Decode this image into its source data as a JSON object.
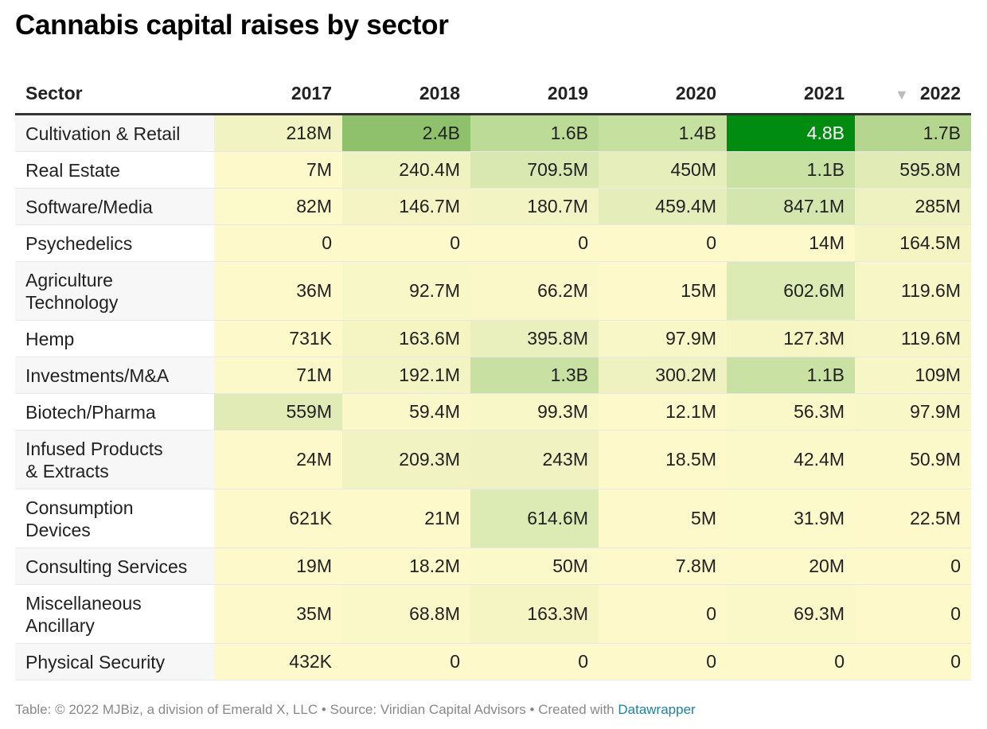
{
  "title": "Cannabis capital raises by sector",
  "footer": {
    "text": "Table: © 2022 MJBiz, a division of Emerald X, LLC • Source: Viridian Capital Advisors • Created with ",
    "link": "Datawrapper"
  },
  "sort_icon": "sort-down-triangle-icon",
  "chart_data": {
    "type": "table",
    "columns": [
      "Sector",
      "2017",
      "2018",
      "2019",
      "2020",
      "2021",
      "2022"
    ],
    "sorted_by": "2022",
    "sort_order": "descending",
    "rows": [
      {
        "sector": "Cultivation & Retail",
        "values": [
          "218M",
          "2.4B",
          "1.6B",
          "1.4B",
          "4.8B",
          "1.7B"
        ],
        "colors": [
          "#f2f3c2",
          "#8fc16c",
          "#bcdb96",
          "#c6e09f",
          "#008c10",
          "#b4d68e"
        ],
        "text_colors": [
          "#222222",
          "#222222",
          "#222222",
          "#222222",
          "#ffffff",
          "#222222"
        ]
      },
      {
        "sector": "Real Estate",
        "values": [
          "7M",
          "240.4M",
          "709.5M",
          "450M",
          "1.1B",
          "595.8M"
        ],
        "colors": [
          "#fdf9cb",
          "#eff3c1",
          "#d8e8b0",
          "#e6eebb",
          "#c9e1a2",
          "#e0ebb6"
        ]
      },
      {
        "sector": "Software/Media",
        "values": [
          "82M",
          "146.7M",
          "180.7M",
          "459.4M",
          "847.1M",
          "285M"
        ],
        "colors": [
          "#fcf9ca",
          "#f4f4c4",
          "#f3f4c3",
          "#e5edba",
          "#d3e6ad",
          "#eef2c0"
        ]
      },
      {
        "sector": "Psychedelics",
        "values": [
          "0",
          "0",
          "0",
          "0",
          "14M",
          "164.5M"
        ],
        "colors": [
          "#fdf9cb",
          "#fdf9cb",
          "#fdf9cb",
          "#fdf9cb",
          "#fdf9cb",
          "#f5f5c4"
        ]
      },
      {
        "sector": "Agriculture Technology",
        "values": [
          "36M",
          "92.7M",
          "66.2M",
          "15M",
          "602.6M",
          "119.6M"
        ],
        "colors": [
          "#fdf9cb",
          "#f8f7c7",
          "#faf8c9",
          "#fdf9cb",
          "#dceab3",
          "#f7f6c6"
        ]
      },
      {
        "sector": "Hemp",
        "values": [
          "731K",
          "163.6M",
          "395.8M",
          "97.9M",
          "127.3M",
          "119.6M"
        ],
        "colors": [
          "#fdf9cb",
          "#f5f5c4",
          "#e9efbd",
          "#f8f7c7",
          "#f6f6c5",
          "#f7f6c6"
        ]
      },
      {
        "sector": "Investments/M&A",
        "values": [
          "71M",
          "192.1M",
          "1.3B",
          "300.2M",
          "1.1B",
          "109M"
        ],
        "colors": [
          "#fbf8c9",
          "#f3f4c3",
          "#c8e0a2",
          "#eef2c0",
          "#c9e1a2",
          "#f7f6c6"
        ]
      },
      {
        "sector": "Biotech/Pharma",
        "values": [
          "559M",
          "59.4M",
          "99.3M",
          "12.1M",
          "56.3M",
          "97.9M"
        ],
        "colors": [
          "#e1ebb6",
          "#faf8c9",
          "#f8f7c7",
          "#fdf9cb",
          "#faf8c9",
          "#f8f7c7"
        ]
      },
      {
        "sector": "Infused Products & Extracts",
        "values": [
          "24M",
          "209.3M",
          "243M",
          "18.5M",
          "42.4M",
          "50.9M"
        ],
        "colors": [
          "#fdf9cb",
          "#f2f3c2",
          "#f0f2c1",
          "#fdf9cb",
          "#fbf8ca",
          "#fbf8ca"
        ]
      },
      {
        "sector": "Consumption Devices",
        "values": [
          "621K",
          "21M",
          "614.6M",
          "5M",
          "31.9M",
          "22.5M"
        ],
        "colors": [
          "#fdf9cb",
          "#fdf9cb",
          "#dceab3",
          "#fdf9cb",
          "#fcf9ca",
          "#fdf9cb"
        ]
      },
      {
        "sector": "Consulting Services",
        "values": [
          "19M",
          "18.2M",
          "50M",
          "7.8M",
          "20M",
          "0"
        ],
        "colors": [
          "#fdf9cb",
          "#fdf9cb",
          "#fbf8ca",
          "#fdf9cb",
          "#fdf9cb",
          "#fdf9cb"
        ]
      },
      {
        "sector": "Miscellaneous Ancillary",
        "values": [
          "35M",
          "68.8M",
          "163.3M",
          "0",
          "69.3M",
          "0"
        ],
        "colors": [
          "#fdf9cb",
          "#faf8c9",
          "#f5f5c4",
          "#fdf9cb",
          "#faf8c9",
          "#fdf9cb"
        ]
      },
      {
        "sector": "Physical Security",
        "values": [
          "432K",
          "0",
          "0",
          "0",
          "0",
          "0"
        ],
        "colors": [
          "#fdf9cb",
          "#fdf9cb",
          "#fdf9cb",
          "#fdf9cb",
          "#fdf9cb",
          "#fdf9cb"
        ]
      }
    ]
  }
}
